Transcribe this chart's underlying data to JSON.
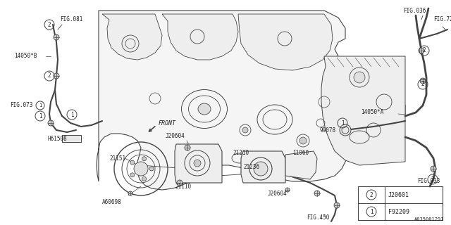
{
  "bg_color": "#ffffff",
  "fig_width": 6.4,
  "fig_height": 3.2,
  "dpi": 100,
  "lc": "#444444",
  "tc": "#222222",
  "legend_items": [
    {
      "num": "1",
      "label": "F92209"
    },
    {
      "num": "2",
      "label": "J20601"
    }
  ],
  "watermark": "A035001291"
}
